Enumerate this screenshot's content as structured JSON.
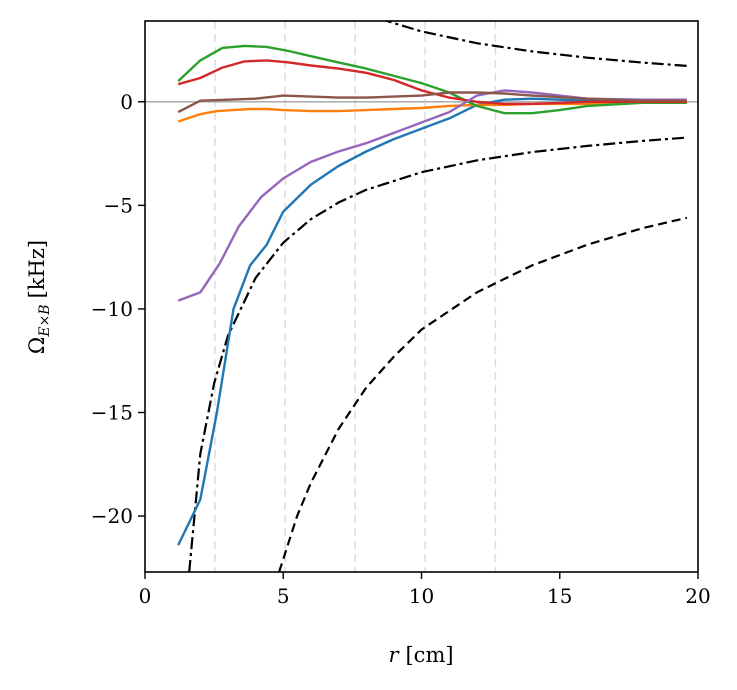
{
  "chart_data": {
    "type": "line",
    "title": "",
    "xlabel_var": "r",
    "xlabel_unit": "[cm]",
    "ylabel_sym": "Ω",
    "ylabel_sub": "E×B",
    "ylabel_unit": "[kHz]",
    "xlim": [
      0,
      20
    ],
    "ylim": [
      -22.7,
      3.9
    ],
    "xticks": [
      0,
      5,
      10,
      15,
      20
    ],
    "yticks": [
      0,
      -5,
      -10,
      -15,
      -20
    ],
    "ytick_labels": [
      "0",
      "−5",
      "−10",
      "−15",
      "−20"
    ],
    "grid_verticals": [
      2.53,
      5.07,
      7.6,
      10.13,
      12.67
    ],
    "zero_line": 0,
    "series": [
      {
        "name": "blue",
        "color": "#1f77b4",
        "x": [
          1.2,
          2.0,
          2.6,
          3.2,
          3.8,
          4.4,
          5.0,
          6.0,
          7.0,
          8.0,
          9.0,
          10.0,
          11.0,
          12.0,
          13.0,
          14.0,
          16.0,
          18.0,
          19.6
        ],
        "y": [
          -21.4,
          -19.2,
          -15.0,
          -10.0,
          -7.9,
          -6.9,
          -5.3,
          -4.0,
          -3.1,
          -2.4,
          -1.8,
          -1.3,
          -0.8,
          -0.15,
          0.1,
          0.15,
          0.05,
          0.05,
          0.05
        ]
      },
      {
        "name": "orange",
        "color": "#ff7f0e",
        "x": [
          1.2,
          2.0,
          2.6,
          3.2,
          3.8,
          4.4,
          5.0,
          6.0,
          7.0,
          8.0,
          9.0,
          10.0,
          11.0,
          12.0,
          13.0,
          14.0,
          16.0,
          18.0,
          19.6
        ],
        "y": [
          -0.95,
          -0.6,
          -0.45,
          -0.4,
          -0.35,
          -0.35,
          -0.4,
          -0.45,
          -0.45,
          -0.4,
          -0.35,
          -0.3,
          -0.2,
          -0.15,
          -0.15,
          -0.1,
          -0.1,
          -0.05,
          -0.05
        ]
      },
      {
        "name": "green",
        "color": "#2ca02c",
        "x": [
          1.2,
          2.0,
          2.8,
          3.6,
          4.4,
          5.2,
          6.0,
          7.0,
          8.0,
          9.0,
          10.0,
          11.0,
          12.0,
          13.0,
          14.0,
          15.0,
          16.0,
          18.0,
          19.6
        ],
        "y": [
          1.0,
          2.0,
          2.6,
          2.7,
          2.65,
          2.45,
          2.2,
          1.9,
          1.6,
          1.25,
          0.9,
          0.45,
          -0.2,
          -0.55,
          -0.55,
          -0.4,
          -0.2,
          -0.05,
          -0.05
        ]
      },
      {
        "name": "red",
        "color": "#d62728",
        "x": [
          1.2,
          2.0,
          2.8,
          3.6,
          4.4,
          5.2,
          6.0,
          7.0,
          8.0,
          9.0,
          10.0,
          11.0,
          12.0,
          13.0,
          14.0,
          16.0,
          18.0,
          19.6
        ],
        "y": [
          0.85,
          1.15,
          1.65,
          1.95,
          2.0,
          1.9,
          1.75,
          1.6,
          1.4,
          1.05,
          0.55,
          0.2,
          0.0,
          -0.1,
          -0.1,
          0.0,
          0.0,
          0.0
        ]
      },
      {
        "name": "purple",
        "color": "#9467bd",
        "x": [
          1.2,
          2.0,
          2.7,
          3.4,
          4.2,
          5.0,
          6.0,
          7.0,
          8.0,
          9.0,
          10.0,
          11.0,
          12.0,
          13.0,
          14.0,
          15.0,
          16.0,
          18.0,
          19.6
        ],
        "y": [
          -9.6,
          -9.2,
          -7.8,
          -6.0,
          -4.6,
          -3.7,
          -2.9,
          -2.4,
          -2.0,
          -1.5,
          -1.0,
          -0.5,
          0.3,
          0.55,
          0.45,
          0.3,
          0.15,
          0.1,
          0.1
        ]
      },
      {
        "name": "brown",
        "color": "#8c564b",
        "x": [
          1.2,
          2.0,
          3.0,
          4.0,
          5.0,
          6.0,
          7.0,
          8.0,
          9.0,
          10.0,
          11.0,
          12.0,
          13.0,
          14.0,
          16.0,
          18.0,
          19.6
        ],
        "y": [
          -0.5,
          0.05,
          0.1,
          0.15,
          0.3,
          0.25,
          0.2,
          0.2,
          0.25,
          0.3,
          0.45,
          0.45,
          0.4,
          0.3,
          0.15,
          0.05,
          0.05
        ]
      }
    ],
    "reference_curves": [
      {
        "name": "dashdot-upper",
        "style": "dashdot",
        "color": "#000000",
        "x": [
          8.5,
          10,
          12,
          14,
          16,
          18,
          19.6
        ],
        "y": [
          4.0,
          3.4,
          2.83,
          2.43,
          2.13,
          1.89,
          1.73
        ]
      },
      {
        "name": "dashdot-lower",
        "style": "dashdot",
        "color": "#000000",
        "x": [
          1.6,
          2.0,
          2.5,
          3.0,
          4.0,
          5.0,
          6.0,
          7.0,
          8.0,
          10.0,
          12.0,
          14.0,
          16.0,
          18.0,
          19.6
        ],
        "y": [
          -22.7,
          -17.0,
          -13.6,
          -11.3,
          -8.5,
          -6.8,
          -5.67,
          -4.86,
          -4.25,
          -3.4,
          -2.83,
          -2.43,
          -2.13,
          -1.89,
          -1.73
        ]
      },
      {
        "name": "dashed",
        "style": "dashed",
        "color": "#000000",
        "x": [
          4.85,
          5.5,
          6.0,
          7.0,
          8.0,
          9.0,
          10.0,
          12.0,
          14.0,
          16.0,
          18.0,
          19.6
        ],
        "y": [
          -22.7,
          -20.0,
          -18.4,
          -15.8,
          -13.8,
          -12.3,
          -11.0,
          -9.2,
          -7.9,
          -6.9,
          -6.1,
          -5.6
        ]
      }
    ]
  }
}
